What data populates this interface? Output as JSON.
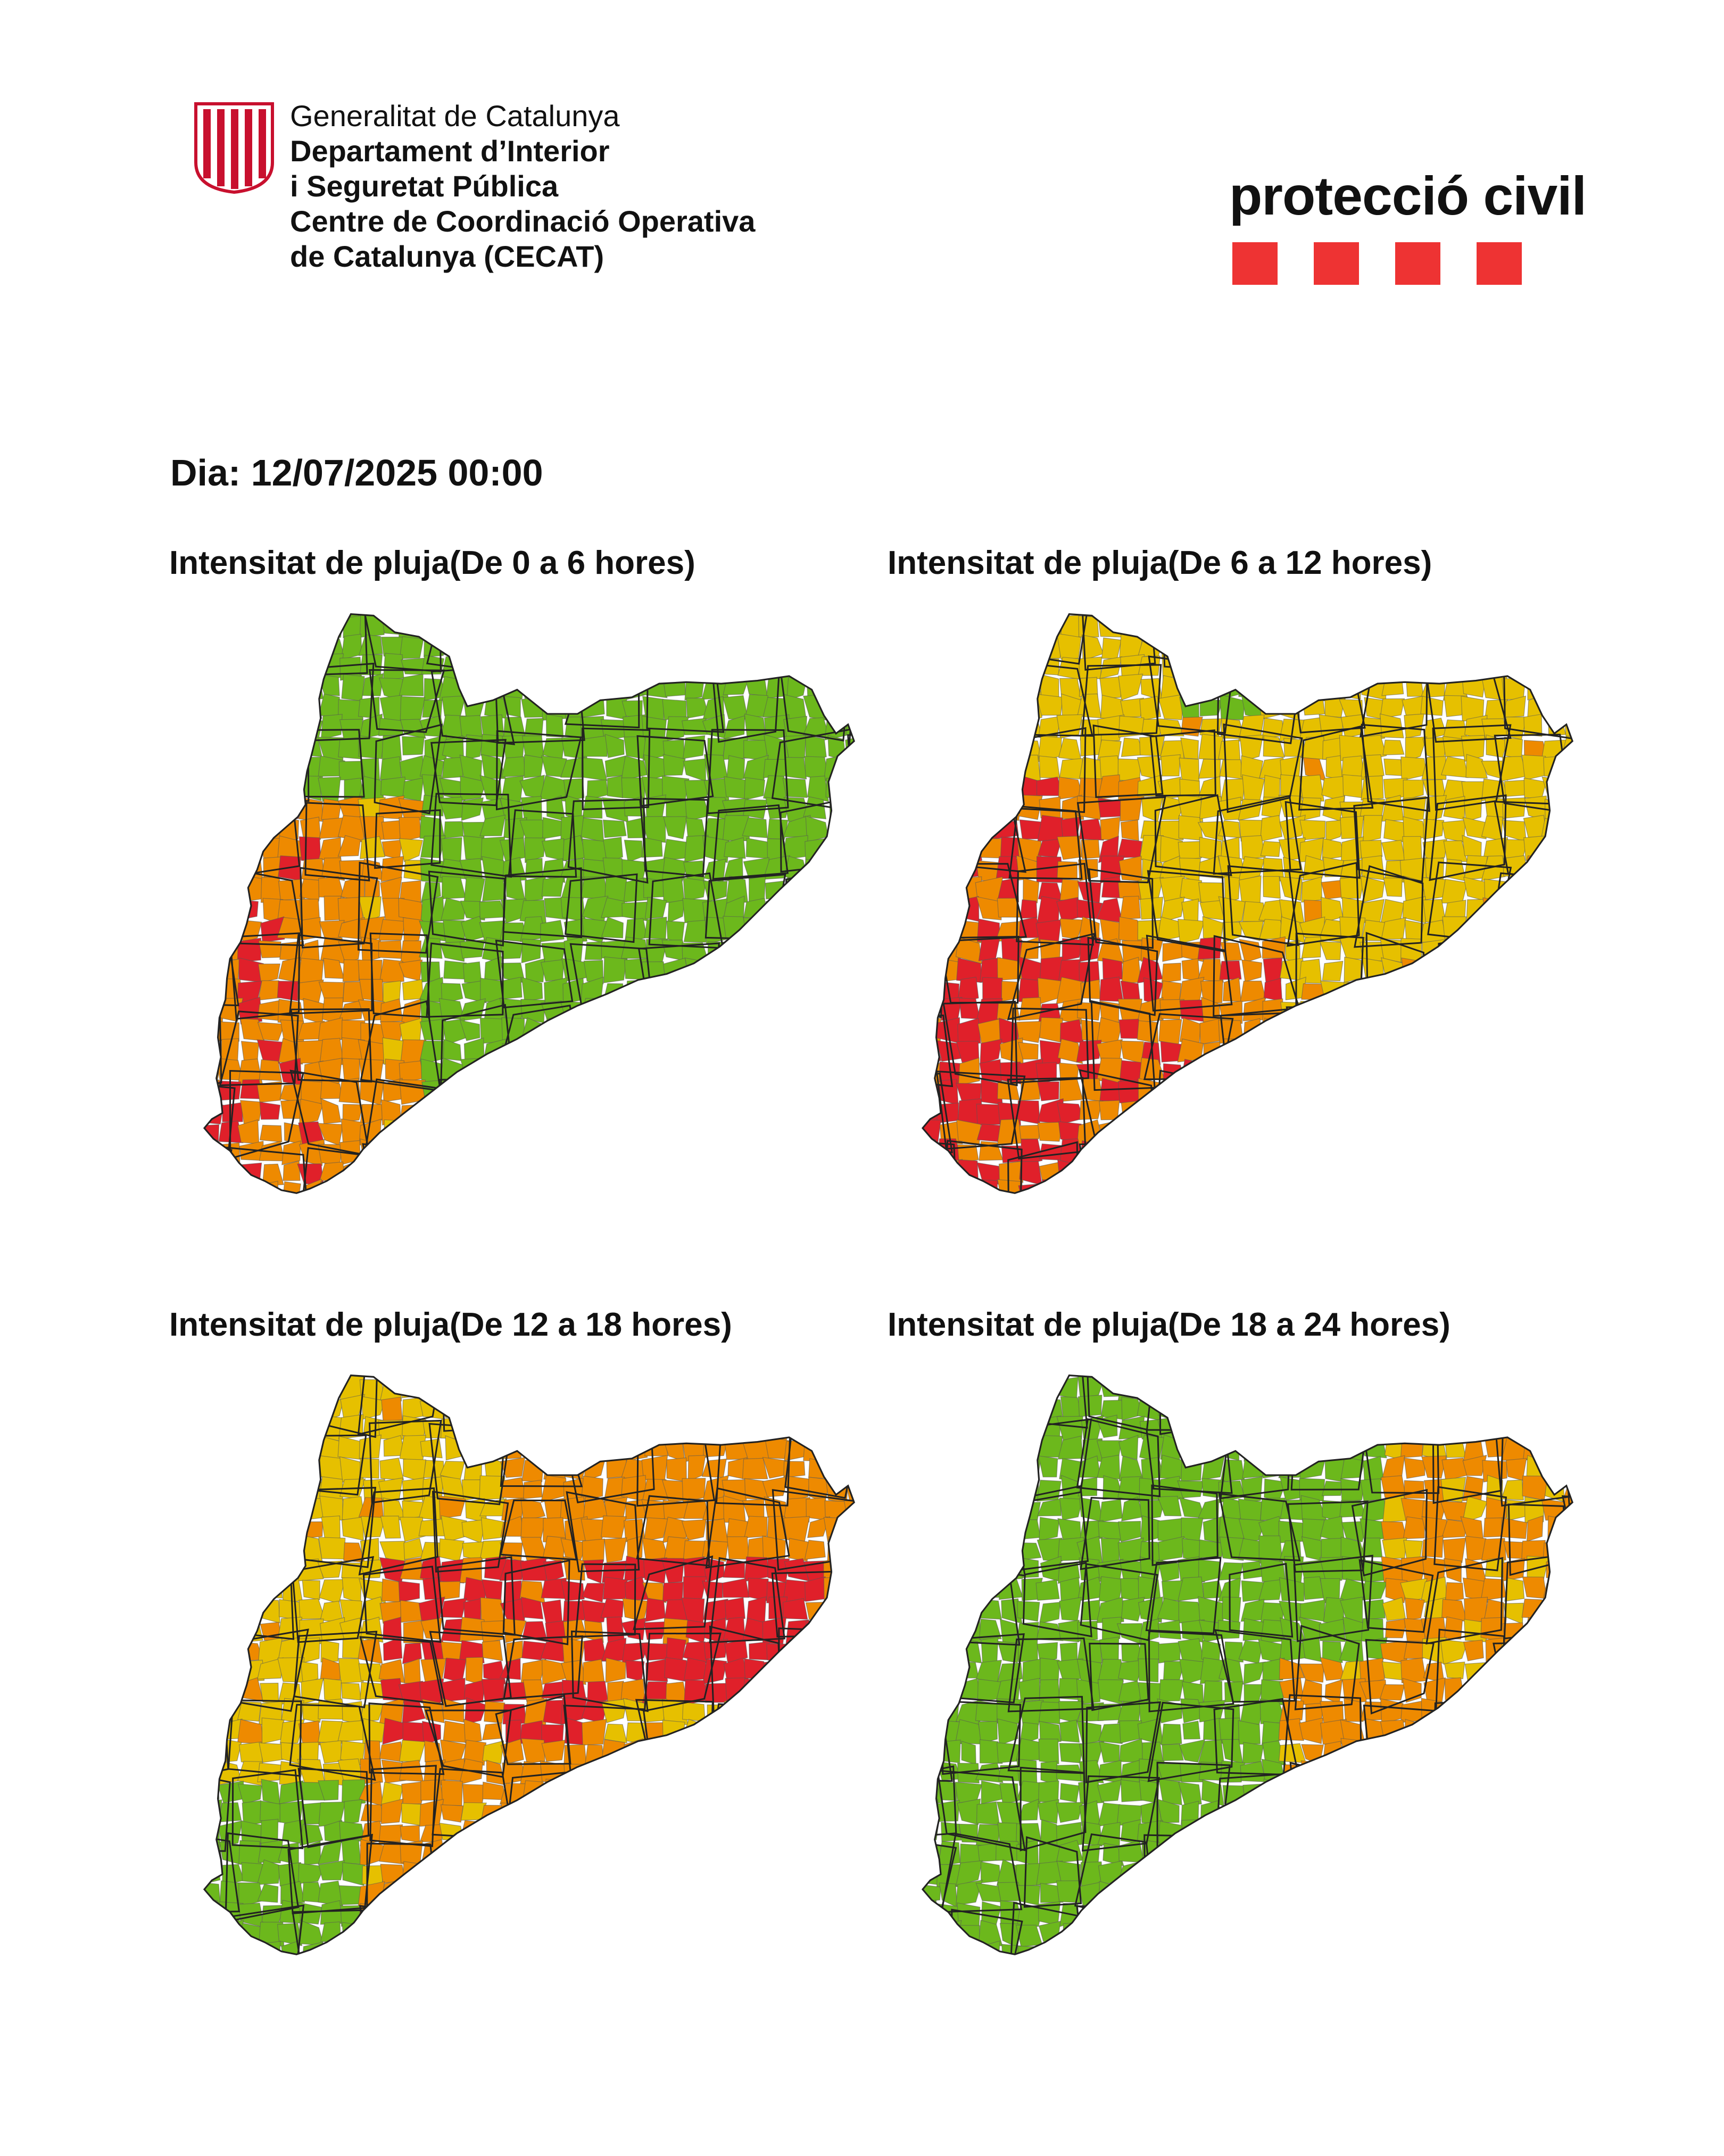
{
  "header": {
    "org_lines": [
      "Generalitat de Catalunya",
      "Departament d’Interior",
      "i Seguretat Pública",
      "Centre de Coordinació Operativa",
      "de Catalunya (CECAT)"
    ],
    "brand": "protecció civil"
  },
  "date_line": "Dia: 12/07/2025 00:00",
  "panels": [
    {
      "title": "Intensitat de pluja(De 0 a 6 hores)"
    },
    {
      "title": "Intensitat de pluja(De 6 a 12 hores)"
    },
    {
      "title": "Intensitat de pluja(De 12 a 18 hores)"
    },
    {
      "title": "Intensitat de pluja(De 18 a 24 hores)"
    }
  ],
  "colors": {
    "green": "#6cb81c",
    "yellow": "#e6c000",
    "orange": "#ee8a00",
    "red": "#e0202a",
    "boundary": "#222222",
    "brand_red": "#ee3333",
    "shield_red": "#c8102e"
  }
}
